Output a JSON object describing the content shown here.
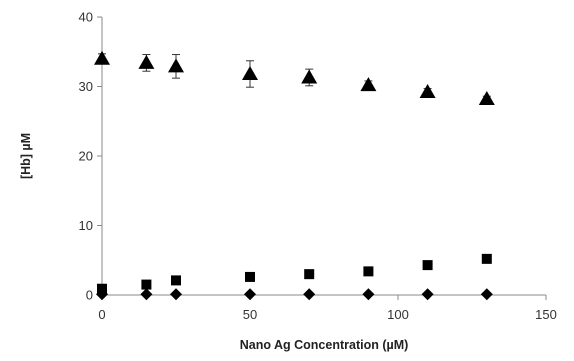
{
  "chart_data": {
    "type": "scatter",
    "title": "",
    "xlabel": "Nano Ag Concentration (µM)",
    "ylabel": "[Hb] µM",
    "xlim": [
      0,
      150
    ],
    "ylim": [
      0,
      40
    ],
    "x_ticks": [
      0,
      50,
      100,
      150
    ],
    "y_ticks": [
      0,
      10,
      20,
      30,
      40
    ],
    "grid": false,
    "legend": "none",
    "series": [
      {
        "marker": "triangle",
        "color": "#000000",
        "x": [
          0,
          15,
          25,
          50,
          70,
          90,
          110,
          130
        ],
        "y": [
          34,
          33.4,
          32.9,
          31.8,
          31.3,
          30.2,
          29.2,
          28.2
        ],
        "error": [
          0.7,
          1.2,
          1.7,
          1.9,
          1.2,
          0.6,
          0.5,
          0.4
        ]
      },
      {
        "marker": "square",
        "color": "#000000",
        "x": [
          0,
          15,
          25,
          50,
          70,
          90,
          110,
          130
        ],
        "y": [
          0.9,
          1.5,
          2.1,
          2.6,
          3.0,
          3.4,
          4.3,
          5.2
        ]
      },
      {
        "marker": "diamond",
        "color": "#000000",
        "x": [
          0,
          15,
          25,
          50,
          70,
          90,
          110,
          130
        ],
        "y": [
          0.1,
          0.1,
          0.1,
          0.1,
          0.1,
          0.1,
          0.1,
          0.1
        ]
      }
    ]
  }
}
